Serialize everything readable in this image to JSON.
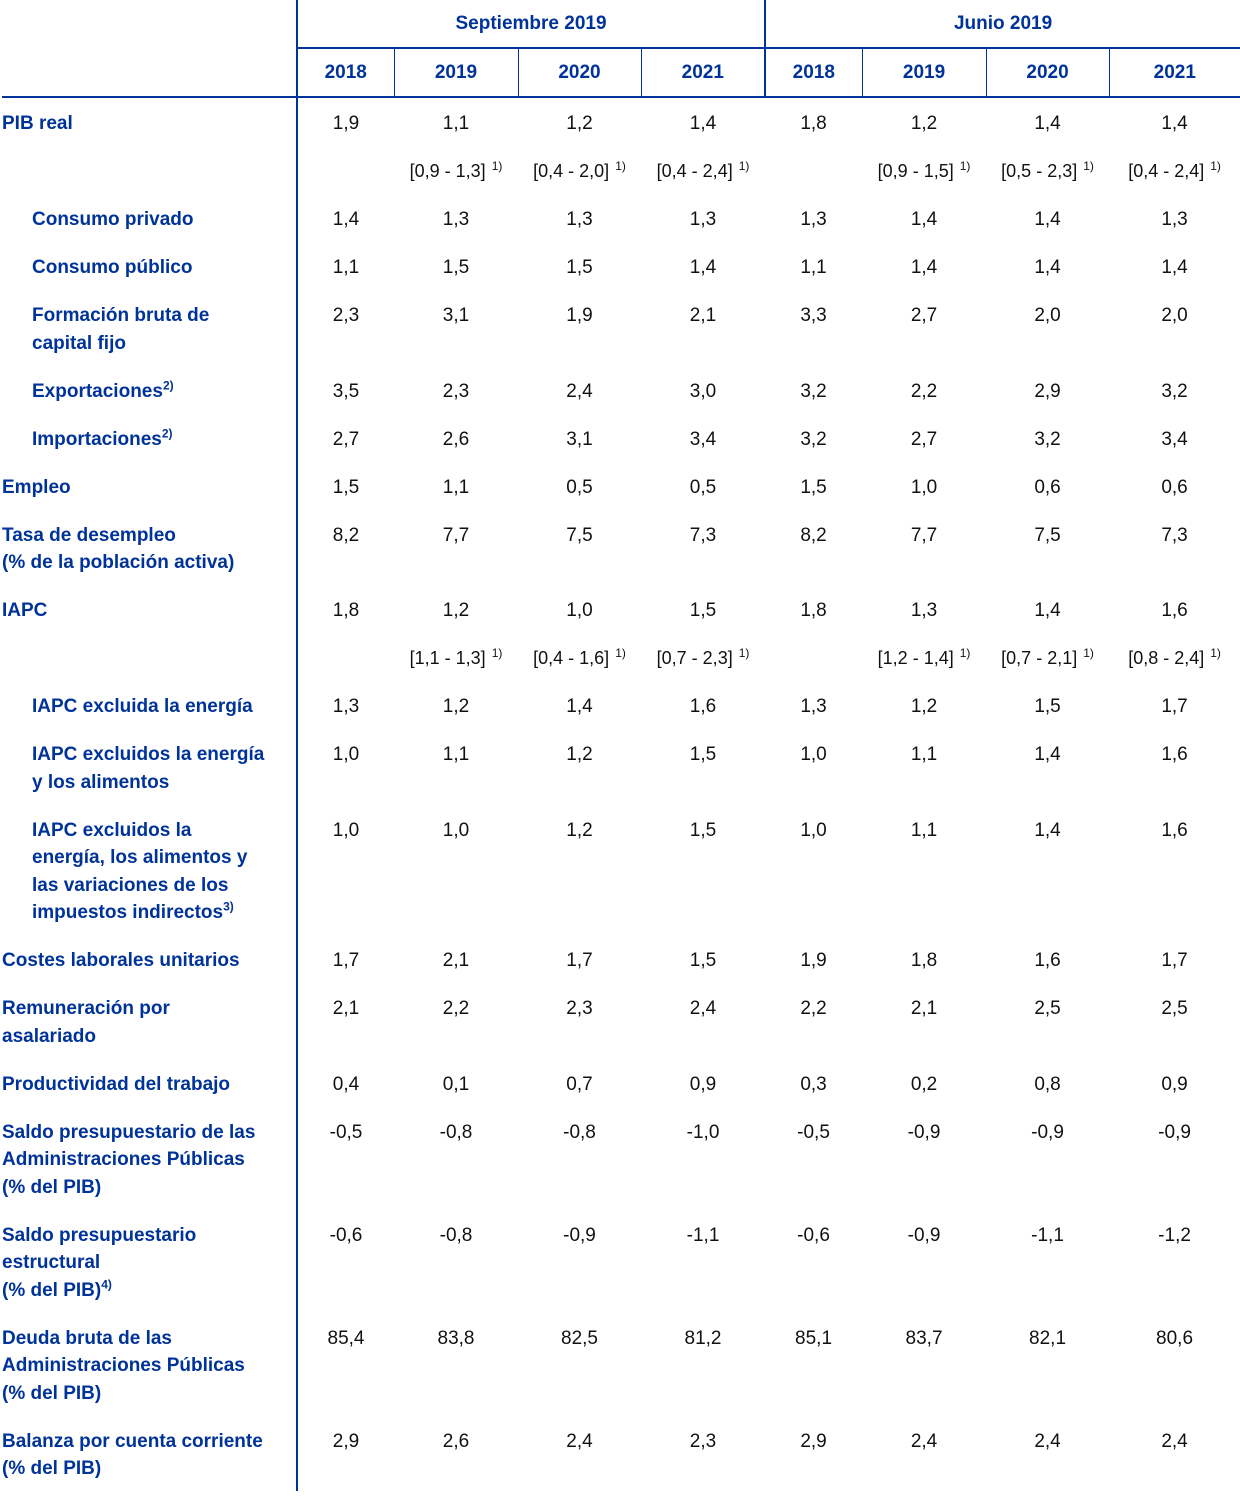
{
  "header": {
    "groups": [
      "Septiembre 2019",
      "Junio 2019"
    ],
    "years": [
      "2018",
      "2019",
      "2020",
      "2021",
      "2018",
      "2019",
      "2020",
      "2021"
    ]
  },
  "colors": {
    "accent": "#003399",
    "text": "#111111"
  },
  "rows": [
    {
      "label": "PIB real",
      "indent": false,
      "values": [
        "1,9",
        "1,1",
        "1,2",
        "1,4",
        "1,8",
        "1,2",
        "1,4",
        "1,4"
      ]
    },
    {
      "label": "",
      "range": true,
      "values": [
        "",
        "[0,9 - 1,3]",
        "[0,4 - 2,0]",
        "[0,4 - 2,4]",
        "",
        "[0,9 - 1,5]",
        "[0,5 - 2,3]",
        "[0,4 - 2,4]"
      ],
      "note": "1)"
    },
    {
      "label": "Consumo privado",
      "indent": true,
      "values": [
        "1,4",
        "1,3",
        "1,3",
        "1,3",
        "1,3",
        "1,4",
        "1,4",
        "1,3"
      ]
    },
    {
      "label": "Consumo público",
      "indent": true,
      "values": [
        "1,1",
        "1,5",
        "1,5",
        "1,4",
        "1,1",
        "1,4",
        "1,4",
        "1,4"
      ]
    },
    {
      "label": "Formación bruta de\ncapital fijo",
      "indent": true,
      "values": [
        "2,3",
        "3,1",
        "1,9",
        "2,1",
        "3,3",
        "2,7",
        "2,0",
        "2,0"
      ]
    },
    {
      "label": "Exportaciones",
      "sup": "2)",
      "indent": true,
      "values": [
        "3,5",
        "2,3",
        "2,4",
        "3,0",
        "3,2",
        "2,2",
        "2,9",
        "3,2"
      ]
    },
    {
      "label": "Importaciones",
      "sup": "2)",
      "indent": true,
      "values": [
        "2,7",
        "2,6",
        "3,1",
        "3,4",
        "3,2",
        "2,7",
        "3,2",
        "3,4"
      ]
    },
    {
      "label": "Empleo",
      "indent": false,
      "values": [
        "1,5",
        "1,1",
        "0,5",
        "0,5",
        "1,5",
        "1,0",
        "0,6",
        "0,6"
      ]
    },
    {
      "label": "Tasa de desempleo\n(% de la población activa)",
      "indent": false,
      "values": [
        "8,2",
        "7,7",
        "7,5",
        "7,3",
        "8,2",
        "7,7",
        "7,5",
        "7,3"
      ]
    },
    {
      "label": "IAPC",
      "indent": false,
      "values": [
        "1,8",
        "1,2",
        "1,0",
        "1,5",
        "1,8",
        "1,3",
        "1,4",
        "1,6"
      ]
    },
    {
      "label": "",
      "range": true,
      "values": [
        "",
        "[1,1 - 1,3]",
        "[0,4 - 1,6]",
        "[0,7 - 2,3]",
        "",
        "[1,2 - 1,4]",
        "[0,7 - 2,1]",
        "[0,8 - 2,4]"
      ],
      "note": "1)"
    },
    {
      "label": "IAPC excluida la energía",
      "indent": true,
      "values": [
        "1,3",
        "1,2",
        "1,4",
        "1,6",
        "1,3",
        "1,2",
        "1,5",
        "1,7"
      ]
    },
    {
      "label": "IAPC excluidos la energía\ny los alimentos",
      "indent": true,
      "values": [
        "1,0",
        "1,1",
        "1,2",
        "1,5",
        "1,0",
        "1,1",
        "1,4",
        "1,6"
      ]
    },
    {
      "label": "IAPC excluidos la\nenergía, los alimentos y\nlas variaciones de los\nimpuestos indirectos",
      "sup": "3)",
      "indent": true,
      "values": [
        "1,0",
        "1,0",
        "1,2",
        "1,5",
        "1,0",
        "1,1",
        "1,4",
        "1,6"
      ]
    },
    {
      "label": "Costes laborales unitarios",
      "indent": false,
      "values": [
        "1,7",
        "2,1",
        "1,7",
        "1,5",
        "1,9",
        "1,8",
        "1,6",
        "1,7"
      ]
    },
    {
      "label": "Remuneración por\nasalariado",
      "indent": false,
      "values": [
        "2,1",
        "2,2",
        "2,3",
        "2,4",
        "2,2",
        "2,1",
        "2,5",
        "2,5"
      ]
    },
    {
      "label": "Productividad del trabajo",
      "indent": false,
      "values": [
        "0,4",
        "0,1",
        "0,7",
        "0,9",
        "0,3",
        "0,2",
        "0,8",
        "0,9"
      ]
    },
    {
      "label": "Saldo presupuestario de las\nAdministraciones Públicas\n(% del PIB)",
      "indent": false,
      "values": [
        "-0,5",
        "-0,8",
        "-0,8",
        "-1,0",
        "-0,5",
        "-0,9",
        "-0,9",
        "-0,9"
      ]
    },
    {
      "label": "Saldo presupuestario\nestructural\n(% del PIB)",
      "sup": "4)",
      "indent": false,
      "values": [
        "-0,6",
        "-0,8",
        "-0,9",
        "-1,1",
        "-0,6",
        "-0,9",
        "-1,1",
        "-1,2"
      ]
    },
    {
      "label": "Deuda bruta de las\nAdministraciones Públicas\n(% del PIB)",
      "indent": false,
      "values": [
        "85,4",
        "83,8",
        "82,5",
        "81,2",
        "85,1",
        "83,7",
        "82,1",
        "80,6"
      ]
    },
    {
      "label": "Balanza por cuenta corriente\n(% del PIB)",
      "indent": false,
      "values": [
        "2,9",
        "2,6",
        "2,4",
        "2,3",
        "2,9",
        "2,4",
        "2,4",
        "2,4"
      ]
    }
  ]
}
